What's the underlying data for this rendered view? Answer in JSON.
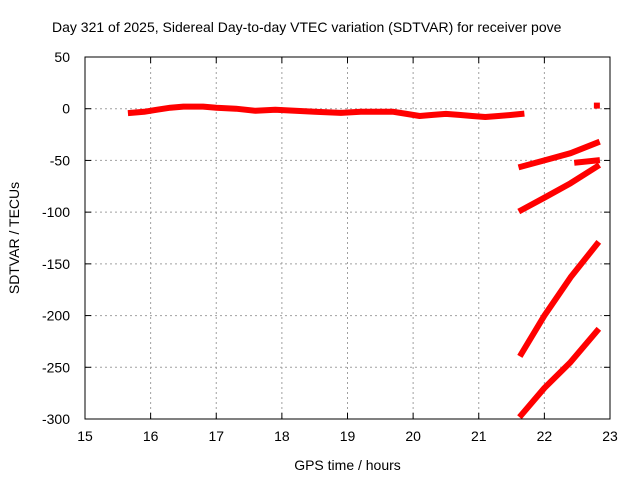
{
  "chart_data": {
    "type": "line",
    "title": "Day 321 of 2025, Sidereal Day-to-day VTEC variation (SDTVAR) for receiver pove",
    "xlabel": "GPS time / hours",
    "ylabel": "SDTVAR / TECUs",
    "xlim": [
      15,
      23
    ],
    "ylim": [
      -300,
      50
    ],
    "xticks": [
      15,
      16,
      17,
      18,
      19,
      20,
      21,
      22,
      23
    ],
    "yticks": [
      50,
      0,
      -50,
      -100,
      -150,
      -200,
      -250,
      -300
    ],
    "grid": true,
    "color": "#ff0000",
    "series": [
      {
        "points": [
          [
            15.7,
            -4
          ],
          [
            15.9,
            -3
          ],
          [
            16.1,
            -1
          ],
          [
            16.3,
            1
          ],
          [
            16.5,
            2
          ],
          [
            16.8,
            2
          ],
          [
            17.0,
            1
          ],
          [
            17.3,
            0
          ],
          [
            17.6,
            -2
          ],
          [
            17.9,
            -1
          ],
          [
            18.2,
            -2
          ],
          [
            18.5,
            -3
          ],
          [
            18.9,
            -4
          ],
          [
            19.2,
            -3
          ],
          [
            19.5,
            -3
          ],
          [
            19.7,
            -3
          ],
          [
            19.9,
            -5
          ],
          [
            20.1,
            -7
          ],
          [
            20.3,
            -6
          ],
          [
            20.5,
            -5
          ],
          [
            20.7,
            -6
          ],
          [
            20.9,
            -7
          ],
          [
            21.1,
            -8
          ],
          [
            21.3,
            -7
          ],
          [
            21.5,
            -6
          ],
          [
            21.65,
            -5
          ]
        ]
      },
      {
        "points": [
          [
            21.65,
            -56
          ],
          [
            22.0,
            -50
          ],
          [
            22.4,
            -43
          ],
          [
            22.8,
            -33
          ]
        ]
      },
      {
        "points": [
          [
            22.5,
            -52
          ],
          [
            22.8,
            -50
          ]
        ]
      },
      {
        "points": [
          [
            21.65,
            -98
          ],
          [
            22.0,
            -86
          ],
          [
            22.4,
            -72
          ],
          [
            22.8,
            -56
          ]
        ]
      },
      {
        "points": [
          [
            21.65,
            -237
          ],
          [
            22.0,
            -200
          ],
          [
            22.4,
            -163
          ],
          [
            22.8,
            -131
          ]
        ]
      },
      {
        "points": [
          [
            21.65,
            -296
          ],
          [
            22.0,
            -270
          ],
          [
            22.4,
            -245
          ],
          [
            22.8,
            -215
          ]
        ]
      },
      {
        "points": [
          [
            22.8,
            3
          ]
        ]
      }
    ]
  }
}
